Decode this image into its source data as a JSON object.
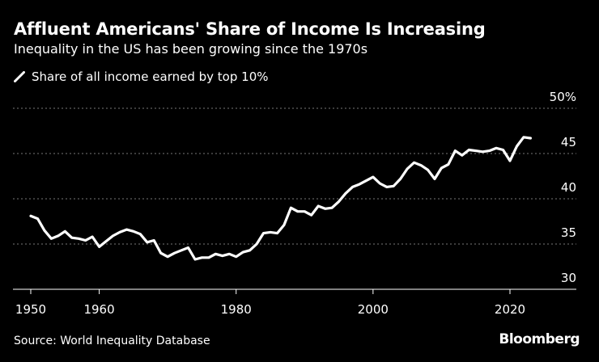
{
  "header": {
    "title": "Affluent Americans' Share of Income Is Increasing",
    "subtitle": "Inequality in the US has been growing since the 1970s"
  },
  "footer": {
    "source": "Source: World Inequality Database",
    "brand": "Bloomberg"
  },
  "colors": {
    "background": "#000000",
    "line": "#ffffff",
    "grid": "#777777"
  },
  "chart_data": {
    "type": "line",
    "title": "Affluent Americans' Share of Income Is Increasing",
    "subtitle": "Inequality in the US has been growing since the 1970s",
    "xlabel": "",
    "ylabel": "",
    "xlim": [
      1948,
      2026
    ],
    "ylim": [
      30,
      50
    ],
    "xticks": [
      1950,
      1960,
      1980,
      2000,
      2020
    ],
    "yticks": [
      30,
      35,
      40,
      45,
      50
    ],
    "ytick_labels": [
      "30",
      "35",
      "40",
      "45",
      "50%"
    ],
    "grid": "horizontal dashed",
    "legend": "top-left",
    "series": [
      {
        "name": "Share of all income earned by top 10%",
        "x": [
          1950,
          1951,
          1952,
          1953,
          1954,
          1955,
          1956,
          1957,
          1958,
          1959,
          1960,
          1961,
          1962,
          1963,
          1964,
          1965,
          1966,
          1967,
          1968,
          1969,
          1970,
          1971,
          1972,
          1973,
          1974,
          1975,
          1976,
          1977,
          1978,
          1979,
          1980,
          1981,
          1982,
          1983,
          1984,
          1985,
          1986,
          1987,
          1988,
          1989,
          1990,
          1991,
          1992,
          1993,
          1994,
          1995,
          1996,
          1997,
          1998,
          1999,
          2000,
          2001,
          2002,
          2003,
          2004,
          2005,
          2006,
          2007,
          2008,
          2009,
          2010,
          2011,
          2012,
          2013,
          2014,
          2015,
          2016,
          2017,
          2018,
          2019,
          2020,
          2021,
          2022,
          2023
        ],
        "values": [
          38.1,
          37.8,
          36.5,
          35.6,
          35.9,
          36.4,
          35.7,
          35.6,
          35.4,
          35.8,
          34.7,
          35.3,
          35.9,
          36.3,
          36.6,
          36.4,
          36.1,
          35.2,
          35.4,
          34.0,
          33.6,
          34.0,
          34.3,
          34.6,
          33.3,
          33.5,
          33.5,
          33.9,
          33.7,
          33.9,
          33.6,
          34.1,
          34.3,
          35.0,
          36.2,
          36.3,
          36.2,
          37.1,
          39.0,
          38.6,
          38.6,
          38.2,
          39.2,
          38.9,
          39.0,
          39.7,
          40.6,
          41.3,
          41.6,
          42.0,
          42.4,
          41.7,
          41.3,
          41.4,
          42.2,
          43.3,
          44.0,
          43.7,
          43.2,
          42.2,
          43.4,
          43.8,
          45.3,
          44.8,
          45.4,
          45.3,
          45.2,
          45.3,
          45.6,
          45.4,
          44.2,
          45.8,
          46.8,
          46.7
        ]
      }
    ]
  }
}
